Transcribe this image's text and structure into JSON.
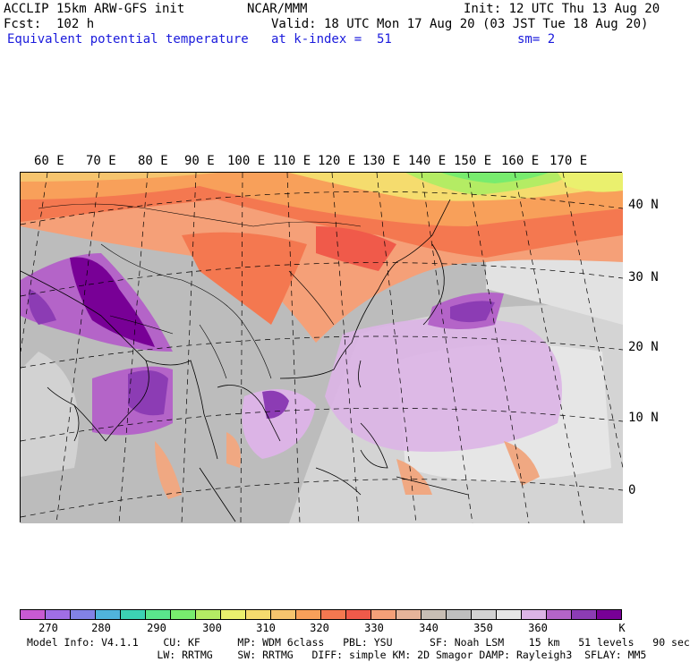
{
  "header": {
    "model_line": "ACCLIP 15km ARW-GFS init",
    "center": "NCAR/MMM",
    "init": "Init: 12 UTC Thu 13 Aug 20",
    "fcst": "Fcst:  102 h",
    "valid": "Valid: 18 UTC Mon 17 Aug 20 (03 JST Tue 18 Aug 20)",
    "field": "Equivalent potential temperature",
    "level": "at k-index =  51",
    "smooth": "sm= 2"
  },
  "map": {
    "lon_labels": [
      "60 E",
      "70 E",
      "80 E",
      "90 E",
      "100 E",
      "110 E",
      "120 E",
      "130 E",
      "140 E",
      "150 E",
      "160 E",
      "170 E"
    ],
    "lat_labels": [
      "40 N",
      "30 N",
      "20 N",
      "10 N",
      "0"
    ]
  },
  "colorbar": {
    "unit": "K",
    "tick_labels": [
      "270",
      "280",
      "290",
      "300",
      "310",
      "320",
      "330",
      "340",
      "350",
      "360"
    ],
    "colors": [
      "#c85ad2",
      "#a06ee6",
      "#8282e6",
      "#50b4dc",
      "#3cd2b4",
      "#5ae68c",
      "#78ec6e",
      "#b4ec64",
      "#eaf06e",
      "#f5dc6e",
      "#f6c46e",
      "#f8a05a",
      "#f47850",
      "#f05a4a",
      "#f5a078",
      "#e6b49a",
      "#c8beb4",
      "#bebebe",
      "#d2d2d2",
      "#e6e6e6",
      "#dcb4e6",
      "#b464c8",
      "#8c3cb4",
      "#780096"
    ]
  },
  "model_info": {
    "line1": "Model Info: V4.1.1    CU: KF      MP: WDM 6class   PBL: YSU      SF: Noah LSM    15 km   51 levels   90 sec",
    "line2": "                     LW: RRTMG    SW: RRTMG   DIFF: simple KM: 2D Smagor DAMP: Rayleigh3  SFLAY: MM5"
  }
}
